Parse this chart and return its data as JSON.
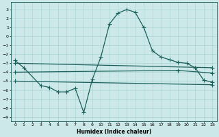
{
  "xlabel": "Humidex (Indice chaleur)",
  "bg_color": "#cce8e8",
  "line_color": "#1a5f5a",
  "grid_color": "#aad4d4",
  "xlim": [
    -0.5,
    23.5
  ],
  "ylim": [
    -9.5,
    3.8
  ],
  "yticks": [
    3,
    2,
    1,
    0,
    -1,
    -2,
    -3,
    -4,
    -5,
    -6,
    -7,
    -8,
    -9
  ],
  "xticks": [
    0,
    1,
    2,
    3,
    4,
    5,
    6,
    7,
    8,
    9,
    10,
    11,
    12,
    13,
    14,
    15,
    16,
    17,
    18,
    19,
    20,
    21,
    22,
    23
  ],
  "line1_x": [
    0,
    1,
    3,
    4,
    5,
    6,
    7,
    8,
    9,
    10,
    11,
    12,
    13,
    14,
    15,
    16,
    17,
    18,
    19,
    20,
    21,
    22,
    23
  ],
  "line1_y": [
    -2.7,
    -3.5,
    -5.5,
    -5.7,
    -6.2,
    -6.2,
    -5.8,
    -8.5,
    -4.8,
    -2.3,
    1.4,
    2.6,
    3.0,
    2.7,
    1.0,
    -1.6,
    -2.3,
    -2.6,
    -2.9,
    -3.0,
    -3.5,
    -4.9,
    -5.1
  ],
  "line2_x": [
    0,
    23
  ],
  "line2_y": [
    -3.0,
    -3.5
  ],
  "line3_x": [
    0,
    19,
    23
  ],
  "line3_y": [
    -4.0,
    -3.8,
    -4.1
  ],
  "line4_x": [
    0,
    23
  ],
  "line4_y": [
    -5.0,
    -5.4
  ],
  "markersize": 2.5,
  "linewidth": 0.9
}
